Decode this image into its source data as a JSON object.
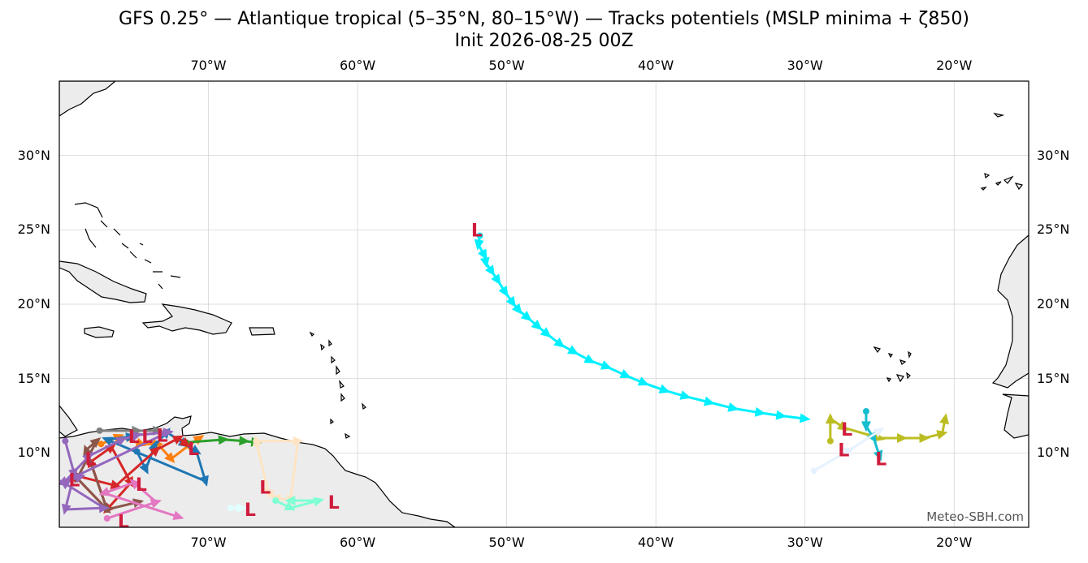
{
  "title": "GFS 0.25° — Atlantique tropical (5–35°N, 80–15°W) — Tracks potentiels (MSLP minima + ζ850)",
  "subtitle": "Init 2026-08-25 00Z",
  "credit": "Meteo-SBH.com",
  "map_data": {
    "projection": "plate-carree",
    "lon_range": [
      -80,
      -15
    ],
    "lat_range": [
      5,
      35
    ],
    "lon_ticks": [
      {
        "lon": -70,
        "label": "70°W"
      },
      {
        "lon": -60,
        "label": "60°W"
      },
      {
        "lon": -50,
        "label": "50°W"
      },
      {
        "lon": -40,
        "label": "40°W"
      },
      {
        "lon": -30,
        "label": "30°W"
      },
      {
        "lon": -20,
        "label": "20°W"
      }
    ],
    "lat_ticks": [
      {
        "lat": 30,
        "label": "30°N"
      },
      {
        "lat": 25,
        "label": "25°N"
      },
      {
        "lat": 20,
        "label": "20°N"
      },
      {
        "lat": 15,
        "label": "15°N"
      },
      {
        "lat": 10,
        "label": "10°N"
      }
    ],
    "grid": true,
    "colors": {
      "land": "#ececec",
      "coast": "#000000",
      "grid": "#cfcfcf",
      "low_marker": "#d01c3c"
    },
    "low_label": "L",
    "tracks": [
      {
        "color": "#00f0ff",
        "points": [
          [
            -51.8,
            24.6
          ],
          [
            -51.9,
            24.0
          ],
          [
            -51.5,
            23.3
          ],
          [
            -51.4,
            22.8
          ],
          [
            -51.0,
            22.2
          ],
          [
            -50.6,
            21.6
          ],
          [
            -50.1,
            20.8
          ],
          [
            -49.6,
            20.1
          ],
          [
            -49.2,
            19.6
          ],
          [
            -48.6,
            19.1
          ],
          [
            -47.9,
            18.5
          ],
          [
            -47.3,
            18.0
          ],
          [
            -46.4,
            17.3
          ],
          [
            -45.5,
            16.8
          ],
          [
            -44.4,
            16.2
          ],
          [
            -43.3,
            15.8
          ],
          [
            -42.0,
            15.2
          ],
          [
            -40.8,
            14.7
          ],
          [
            -39.4,
            14.2
          ],
          [
            -38.0,
            13.8
          ],
          [
            -36.4,
            13.4
          ],
          [
            -34.8,
            13.0
          ],
          [
            -33.0,
            12.7
          ],
          [
            -31.6,
            12.5
          ],
          [
            -30.0,
            12.3
          ]
        ],
        "low": [
          -52.0,
          25.0
        ]
      },
      {
        "color": "#bcbd22",
        "points": [
          [
            -28.3,
            10.8
          ],
          [
            -28.3,
            12.3
          ],
          [
            -27.4,
            11.7
          ],
          [
            -25.0,
            11.0
          ],
          [
            -23.5,
            11.0
          ],
          [
            -22.0,
            11.0
          ],
          [
            -20.8,
            11.3
          ],
          [
            -20.6,
            12.3
          ]
        ],
        "low": [
          -27.4,
          10.2
        ]
      },
      {
        "color": "#17becf",
        "points": [
          [
            -25.9,
            12.8
          ],
          [
            -25.9,
            11.8
          ],
          [
            -25.4,
            11.0
          ],
          [
            -25.0,
            9.8
          ]
        ],
        "low": [
          -24.9,
          9.6
        ]
      },
      {
        "color": "#e6f2ff",
        "points": [
          [
            -29.4,
            8.8
          ],
          [
            -27.0,
            10.2
          ],
          [
            -25.0,
            11.5
          ]
        ],
        "low": [
          -27.2,
          11.6
        ]
      },
      {
        "color": "#ff7f0e",
        "points": [
          [
            -77.2,
            10.6
          ],
          [
            -76.0,
            11.1
          ],
          [
            -74.5,
            10.6
          ],
          [
            -73.4,
            10.6
          ],
          [
            -72.5,
            9.6
          ],
          [
            -71.2,
            10.6
          ],
          [
            -70.6,
            11.0
          ]
        ],
        "low": [
          -73.1,
          11.2
        ]
      },
      {
        "color": "#1f77b4",
        "points": [
          [
            -74.8,
            10.1
          ],
          [
            -74.2,
            8.9
          ],
          [
            -73.6,
            10.5
          ],
          [
            -72.8,
            11.4
          ],
          [
            -71.6,
            10.6
          ],
          [
            -70.8,
            10.1
          ],
          [
            -70.2,
            8.1
          ],
          [
            -76.8,
            10.9
          ],
          [
            -75.2,
            11.1
          ]
        ],
        "low": [
          -74.1,
          11.1
        ]
      },
      {
        "color": "#2ca02c",
        "points": [
          [
            -71.5,
            10.7
          ],
          [
            -69.0,
            10.9
          ],
          [
            -67.6,
            10.8
          ],
          [
            -66.8,
            10.7
          ]
        ],
        "low": [
          -71.0,
          10.3
        ]
      },
      {
        "color": "#7f7f7f",
        "points": [
          [
            -77.3,
            11.5
          ],
          [
            -74.8,
            11.5
          ],
          [
            -73.4,
            11.5
          ]
        ],
        "low": [
          -75.0,
          11.1
        ]
      },
      {
        "color": "#d62728",
        "points": [
          [
            -76.8,
            6.2
          ],
          [
            -77.9,
            9.4
          ],
          [
            -76.5,
            10.4
          ],
          [
            -75.2,
            8.0
          ],
          [
            -76.8,
            6.2
          ],
          [
            -79.0,
            8.5
          ],
          [
            -76.2,
            7.8
          ],
          [
            -73.5,
            10.2
          ],
          [
            -72.0,
            11.0
          ],
          [
            -71.5,
            10.6
          ]
        ],
        "low": [
          -74.5,
          7.9
        ]
      },
      {
        "color": "#8c564b",
        "points": [
          [
            -76.8,
            6.2
          ],
          [
            -78.2,
            10.2
          ],
          [
            -77.5,
            10.8
          ],
          [
            -78.8,
            8.3
          ],
          [
            -76.8,
            6.2
          ],
          [
            -74.7,
            6.7
          ]
        ],
        "low": [
          -77.9,
          9.6
        ]
      },
      {
        "color": "#9467bd",
        "points": [
          [
            -79.6,
            10.8
          ],
          [
            -79.0,
            8.6
          ],
          [
            -79.6,
            6.2
          ],
          [
            -77.0,
            6.3
          ],
          [
            -79.7,
            8.0
          ],
          [
            -78.0,
            9.8
          ],
          [
            -75.8,
            10.9
          ],
          [
            -74.8,
            11.2
          ],
          [
            -72.7,
            11.4
          ],
          [
            -79.8,
            8.0
          ],
          [
            -78.6,
            8.4
          ]
        ],
        "low": [
          -79.0,
          8.2
        ]
      },
      {
        "color": "#e377c2",
        "points": [
          [
            -76.8,
            5.6
          ],
          [
            -73.5,
            6.7
          ],
          [
            -75.0,
            8.0
          ],
          [
            -77.0,
            7.3
          ],
          [
            -72.0,
            5.7
          ]
        ],
        "low": [
          -75.7,
          5.4
        ]
      },
      {
        "color": "#ffe4c4",
        "points": [
          [
            -66.8,
            10.8
          ],
          [
            -64.0,
            10.8
          ],
          [
            -64.5,
            6.8
          ],
          [
            -65.5,
            7.0
          ],
          [
            -66.0,
            7.4
          ],
          [
            -66.8,
            10.8
          ]
        ],
        "low": [
          -66.2,
          7.7
        ]
      },
      {
        "color": "#7fffd4",
        "points": [
          [
            -65.5,
            6.8
          ],
          [
            -64.5,
            6.3
          ],
          [
            -62.6,
            6.8
          ],
          [
            -64.5,
            6.8
          ]
        ],
        "low": [
          -61.6,
          6.7
        ]
      },
      {
        "color": "#e0ffff",
        "points": [
          [
            -68.5,
            6.3
          ],
          [
            -67.8,
            6.3
          ]
        ],
        "low": [
          -67.2,
          6.2
        ]
      }
    ]
  }
}
